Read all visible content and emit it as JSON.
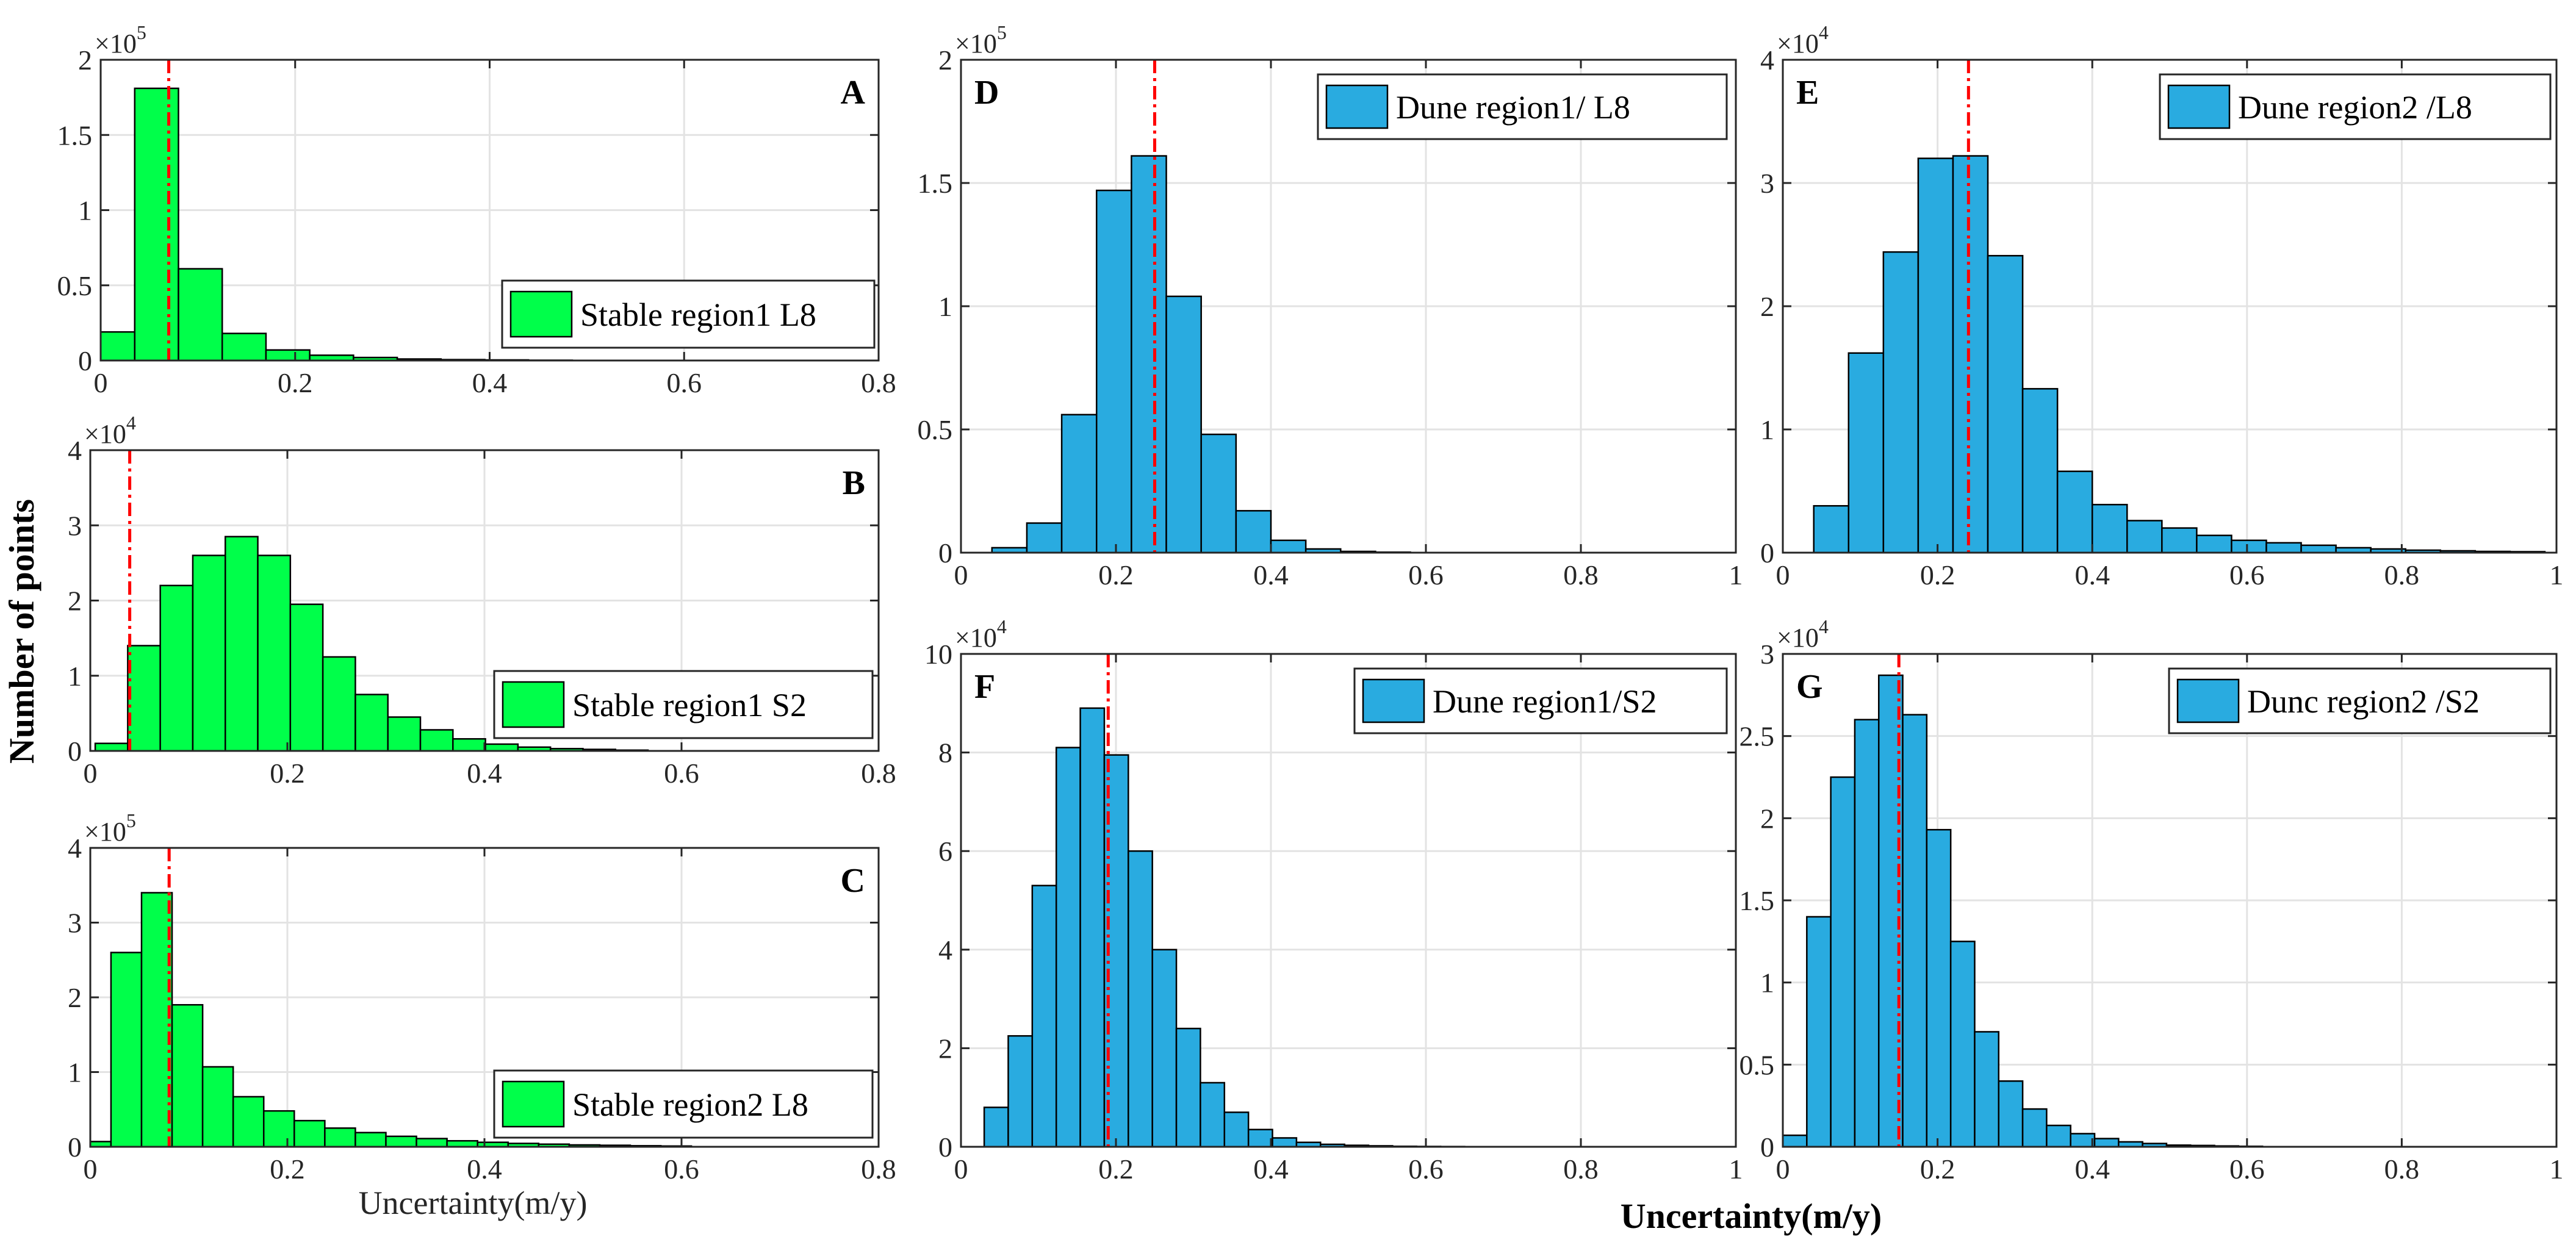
{
  "figure": {
    "shared_ylabel": "Number of points",
    "shared_xlabel": "Uncertainty(m/y)",
    "left_xlabel": "Uncertainty(m/y)"
  },
  "colors": {
    "green": "#00ff4a",
    "blue": "#29abe0",
    "mean_line": "#ff0000"
  },
  "chart_data": [
    {
      "id": "A",
      "type": "bar",
      "letter": "A",
      "legend": "Stable region1 L8",
      "legend_placement": "right",
      "exponent": "5",
      "color": "green",
      "xlim": [
        0,
        0.8
      ],
      "ylim": [
        0,
        2
      ],
      "xticks": [
        0,
        0.2,
        0.4,
        0.6,
        0.8
      ],
      "xtick_labels": [
        "0",
        "0.2",
        "0.4",
        "0.6",
        "0.8"
      ],
      "yticks": [
        0,
        0.5,
        1,
        1.5,
        2
      ],
      "ytick_labels": [
        "0",
        "0.5",
        "1",
        "1.5",
        "2"
      ],
      "bin_width": 0.045,
      "bin_start": -0.01,
      "values": [
        0.19,
        1.81,
        0.61,
        0.18,
        0.07,
        0.035,
        0.02,
        0.01,
        0.006,
        0.004,
        0.002,
        0.001,
        0.001
      ],
      "mean": 0.07
    },
    {
      "id": "B",
      "type": "bar",
      "letter": "B",
      "legend": "Stable region1 S2",
      "legend_placement": "right",
      "exponent": "4",
      "color": "green",
      "xlim": [
        0,
        0.8
      ],
      "ylim": [
        0,
        4
      ],
      "xticks": [
        0,
        0.2,
        0.4,
        0.6,
        0.8
      ],
      "xtick_labels": [
        "0",
        "0.2",
        "0.4",
        "0.6",
        "0.8"
      ],
      "yticks": [
        0,
        1,
        2,
        3,
        4
      ],
      "ytick_labels": [
        "0",
        "1",
        "2",
        "3",
        "4"
      ],
      "bin_width": 0.033,
      "bin_start": 0.005,
      "values": [
        0.1,
        1.4,
        2.2,
        2.6,
        2.85,
        2.6,
        1.95,
        1.25,
        0.75,
        0.45,
        0.28,
        0.16,
        0.09,
        0.05,
        0.03,
        0.02,
        0.01
      ],
      "mean": 0.04
    },
    {
      "id": "C",
      "type": "bar",
      "letter": "C",
      "legend": "Stable region2 L8",
      "legend_placement": "right",
      "exponent": "5",
      "color": "green",
      "xlim": [
        0,
        0.8
      ],
      "ylim": [
        0,
        4
      ],
      "xticks": [
        0,
        0.2,
        0.4,
        0.6,
        0.8
      ],
      "xtick_labels": [
        "0",
        "0.2",
        "0.4",
        "0.6",
        "0.8"
      ],
      "yticks": [
        0,
        1,
        2,
        3,
        4
      ],
      "ytick_labels": [
        "0",
        "1",
        "2",
        "3",
        "4"
      ],
      "bin_width": 0.031,
      "bin_start": -0.01,
      "values": [
        0.07,
        2.6,
        3.4,
        1.9,
        1.07,
        0.67,
        0.48,
        0.35,
        0.25,
        0.19,
        0.14,
        0.11,
        0.08,
        0.06,
        0.045,
        0.035,
        0.025,
        0.02,
        0.014,
        0.01
      ],
      "mean": 0.08
    },
    {
      "id": "D",
      "type": "bar",
      "letter": "D",
      "legend": "Dune region1/ L8",
      "legend_placement": "top-right",
      "exponent": "5",
      "color": "blue",
      "xlim": [
        0,
        1
      ],
      "ylim": [
        0,
        2
      ],
      "xticks": [
        0,
        0.2,
        0.4,
        0.6,
        0.8,
        1
      ],
      "xtick_labels": [
        "0",
        "0.2",
        "0.4",
        "0.6",
        "0.8",
        "1"
      ],
      "yticks": [
        0,
        0.5,
        1,
        1.5,
        2
      ],
      "ytick_labels": [
        "0",
        "0.5",
        "1",
        "1.5",
        "2"
      ],
      "bin_width": 0.045,
      "bin_start": 0.04,
      "values": [
        0.02,
        0.12,
        0.56,
        1.47,
        1.61,
        1.04,
        0.48,
        0.17,
        0.05,
        0.015,
        0.005,
        0.002
      ],
      "mean": 0.25
    },
    {
      "id": "E",
      "type": "bar",
      "letter": "E",
      "legend": "Dune region2 /L8",
      "legend_placement": "top-right",
      "exponent": "4",
      "color": "blue",
      "xlim": [
        0,
        1
      ],
      "ylim": [
        0,
        4
      ],
      "xticks": [
        0,
        0.2,
        0.4,
        0.6,
        0.8,
        1
      ],
      "xtick_labels": [
        "0",
        "0.2",
        "0.4",
        "0.6",
        "0.8",
        "1"
      ],
      "yticks": [
        0,
        1,
        2,
        3,
        4
      ],
      "ytick_labels": [
        "0",
        "1",
        "2",
        "3",
        "4"
      ],
      "bin_width": 0.045,
      "bin_start": 0.04,
      "values": [
        0.38,
        1.62,
        2.44,
        3.2,
        3.22,
        2.41,
        1.33,
        0.66,
        0.39,
        0.26,
        0.2,
        0.14,
        0.1,
        0.08,
        0.06,
        0.04,
        0.03,
        0.02,
        0.015,
        0.01,
        0.008
      ],
      "mean": 0.24
    },
    {
      "id": "F",
      "type": "bar",
      "letter": "F",
      "legend": "Dune region1/S2",
      "legend_placement": "top-right",
      "exponent": "4",
      "color": "blue",
      "xlim": [
        0,
        1
      ],
      "ylim": [
        0,
        10
      ],
      "xticks": [
        0,
        0.2,
        0.4,
        0.6,
        0.8,
        1
      ],
      "xtick_labels": [
        "0",
        "0.2",
        "0.4",
        "0.6",
        "0.8",
        "1"
      ],
      "yticks": [
        0,
        2,
        4,
        6,
        8,
        10
      ],
      "ytick_labels": [
        "0",
        "2",
        "4",
        "6",
        "8",
        "10"
      ],
      "bin_width": 0.031,
      "bin_start": 0.03,
      "values": [
        0.8,
        2.25,
        5.3,
        8.1,
        8.9,
        7.95,
        6.0,
        4.0,
        2.4,
        1.3,
        0.7,
        0.35,
        0.18,
        0.09,
        0.05,
        0.03,
        0.02,
        0.01,
        0.007,
        0.005
      ],
      "mean": 0.19
    },
    {
      "id": "G",
      "type": "bar",
      "letter": "G",
      "legend": "Dunc region2 /S2",
      "legend_placement": "top-right",
      "exponent": "4",
      "color": "blue",
      "xlim": [
        0,
        1
      ],
      "ylim": [
        0,
        3
      ],
      "xticks": [
        0,
        0.2,
        0.4,
        0.6,
        0.8,
        1
      ],
      "xtick_labels": [
        "0",
        "0.2",
        "0.4",
        "0.6",
        "0.8",
        "1"
      ],
      "yticks": [
        0,
        0.5,
        1,
        1.5,
        2,
        2.5,
        3
      ],
      "ytick_labels": [
        "0",
        "0.5",
        "1",
        "1.5",
        "2",
        "2.5",
        "3"
      ],
      "bin_width": 0.031,
      "bin_start": 0.0,
      "values": [
        0.07,
        1.4,
        2.25,
        2.6,
        2.87,
        2.63,
        1.93,
        1.25,
        0.7,
        0.4,
        0.23,
        0.13,
        0.08,
        0.05,
        0.03,
        0.02,
        0.01,
        0.008,
        0.005,
        0.003
      ],
      "mean": 0.15
    }
  ]
}
